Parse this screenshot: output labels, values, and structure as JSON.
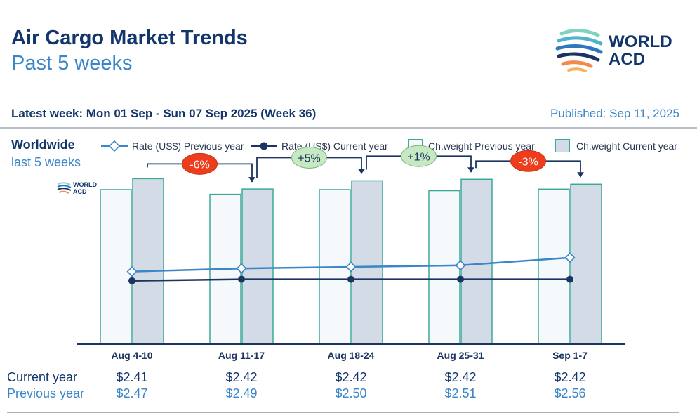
{
  "header": {
    "title": "Air Cargo Market Trends",
    "subtitle": "Past 5 weeks",
    "latest_week": "Latest week:  Mon 01 Sep - Sun 07 Sep 2025 (Week 36)",
    "published": "Published: Sep 11, 2025",
    "logo_line1": "WORLD",
    "logo_line2": "ACD"
  },
  "region": {
    "name": "Worldwide",
    "period": "last 5 weeks"
  },
  "legend": {
    "rate_prev": "Rate (US$) Previous year",
    "rate_cur": "Rate (US$) Current year",
    "cw_prev": "Ch.weight Previous year",
    "cw_cur": "Ch.weight Current year"
  },
  "table": {
    "current_label": "Current year",
    "previous_label": "Previous year",
    "current_values": [
      "$2.41",
      "$2.42",
      "$2.42",
      "$2.42",
      "$2.42"
    ],
    "previous_values": [
      "$2.47",
      "$2.49",
      "$2.50",
      "$2.51",
      "$2.56"
    ]
  },
  "chart_data": {
    "type": "bar",
    "categories": [
      "Aug 4-10",
      "Aug 11-17",
      "Aug 18-24",
      "Aug 25-31",
      "Sep 1-7"
    ],
    "series": [
      {
        "name": "Ch.weight Previous year",
        "kind": "bar",
        "values": [
          100,
          97,
          100,
          99.3,
          100.3
        ]
      },
      {
        "name": "Ch.weight Current year",
        "kind": "bar",
        "values": [
          107.1,
          100.4,
          105.7,
          106.7,
          103.5
        ]
      },
      {
        "name": "Rate (US$) Previous year",
        "kind": "line",
        "values": [
          2.47,
          2.49,
          2.5,
          2.51,
          2.56
        ]
      },
      {
        "name": "Rate (US$) Current year",
        "kind": "line",
        "values": [
          2.41,
          2.42,
          2.42,
          2.42,
          2.42
        ]
      }
    ],
    "changes": [
      "-6%",
      "+5%",
      "+1%",
      "-3%"
    ],
    "change_colors": [
      "#ee3d1c",
      "#c6e8c2",
      "#c6e8c2",
      "#ee3d1c"
    ],
    "bar_ylim": [
      0,
      110
    ],
    "rate_ylim": [
      2.0,
      3.1
    ],
    "colors": {
      "prev_bar_fill": "#f6f9fc",
      "prev_bar_stroke": "#3ba99a",
      "cur_bar_fill": "#d3dbe7",
      "cur_bar_stroke": "#3ba99a",
      "rate_prev": "#3a86c8",
      "rate_cur": "#1c3461",
      "connector": "#1c3461"
    }
  }
}
